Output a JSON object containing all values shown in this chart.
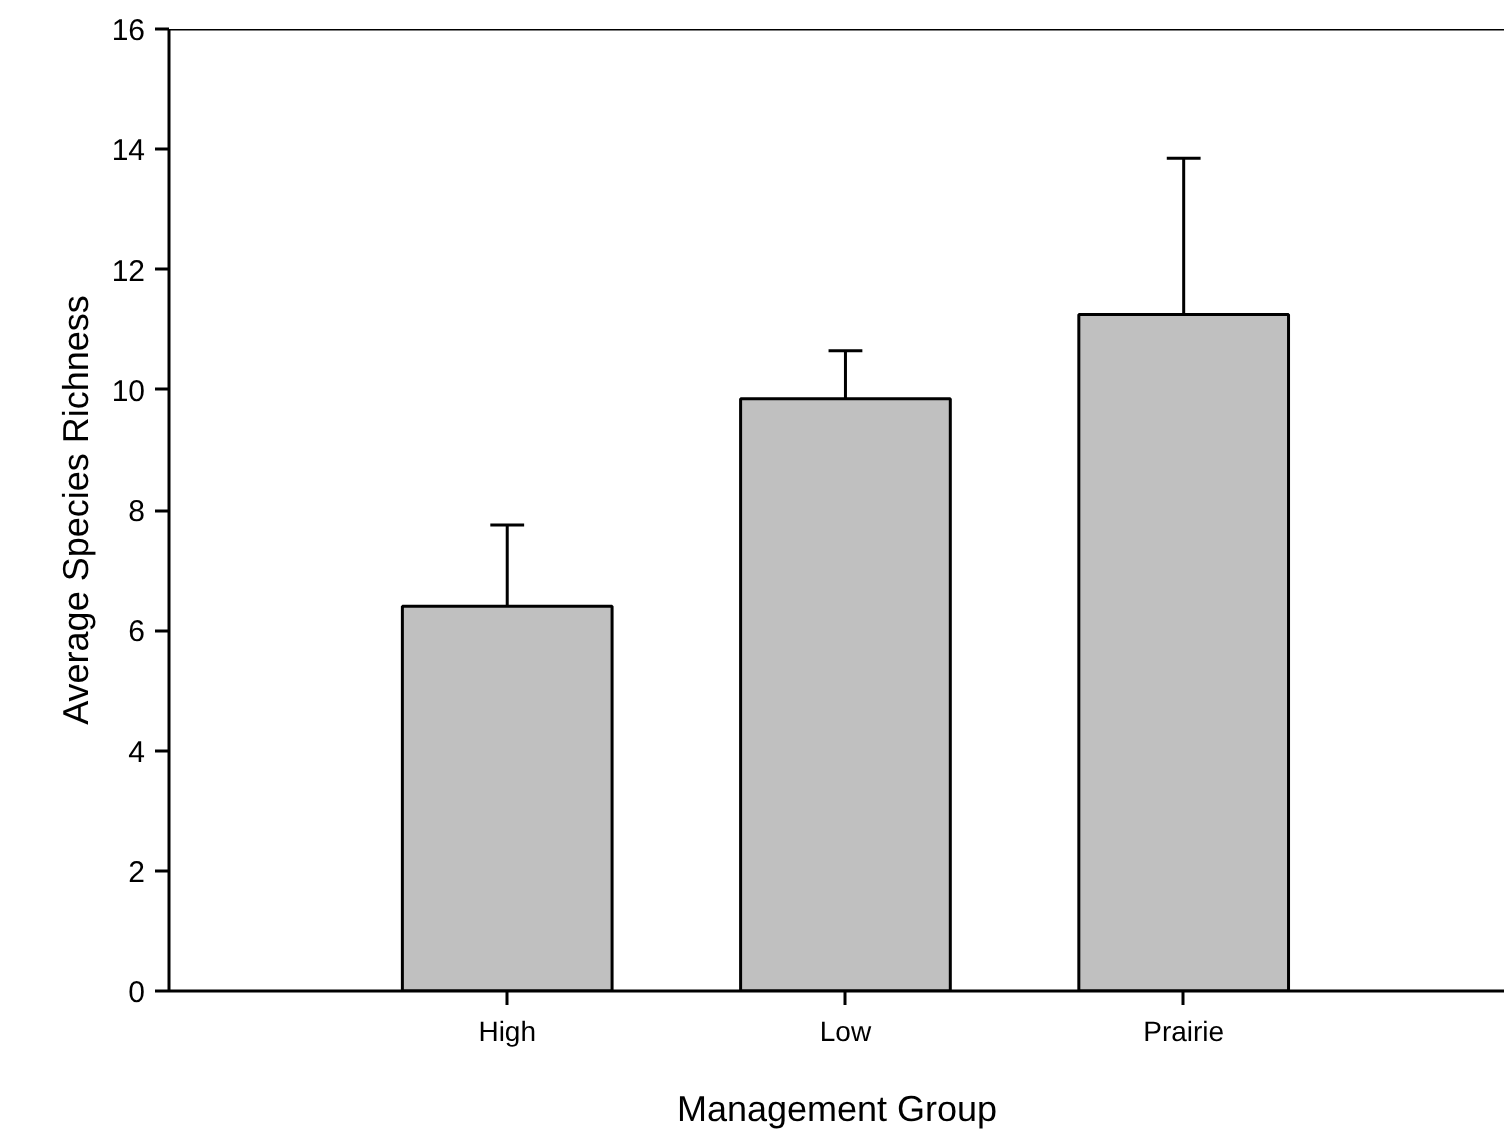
{
  "chart_data": {
    "type": "bar",
    "xlabel": "Management Group",
    "ylabel": "Average Species Richness",
    "categories": [
      "High",
      "Low",
      "Prairie"
    ],
    "values": [
      6.4,
      9.85,
      11.25
    ],
    "errors": [
      [
        6.4,
        7.75
      ],
      [
        9.85,
        10.65
      ],
      [
        11.25,
        13.85
      ]
    ],
    "color": "#c0c0c0",
    "ylim": [
      0,
      16
    ],
    "yticks": [
      0,
      2,
      4,
      6,
      8,
      10,
      12,
      14,
      16
    ],
    "grid": false
  }
}
